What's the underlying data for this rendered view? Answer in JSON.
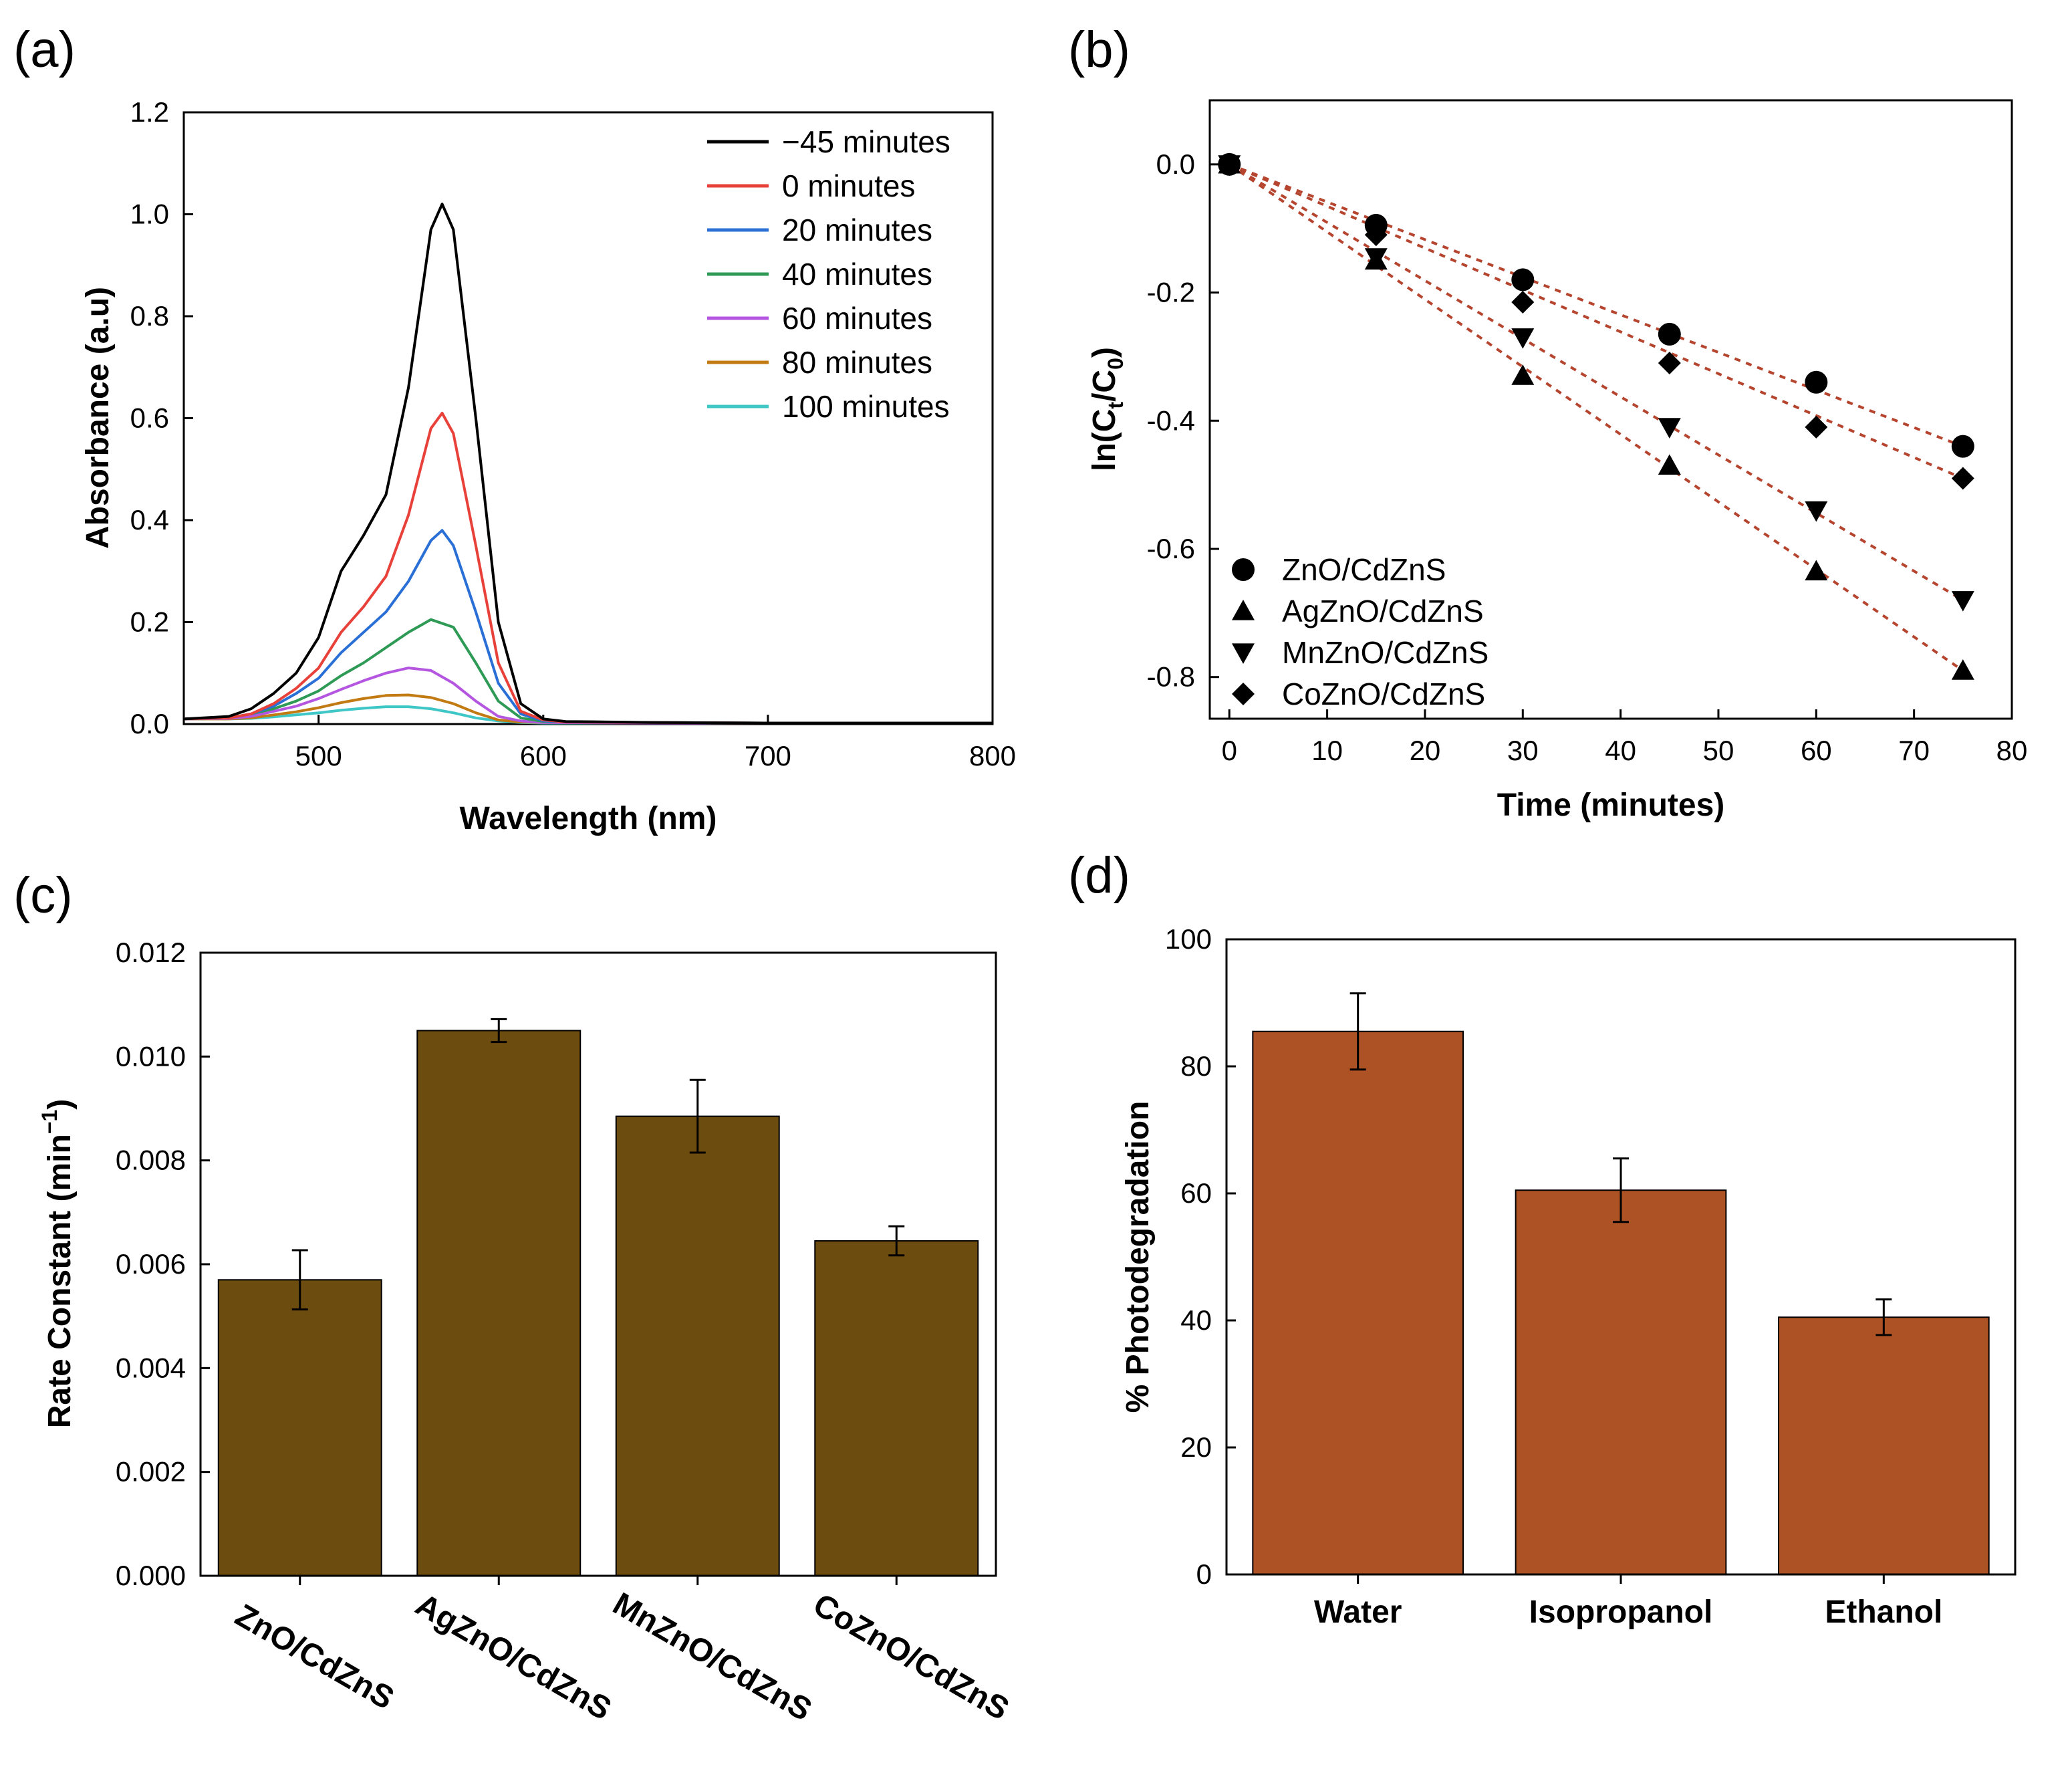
{
  "chart_data": [
    {
      "id": "a",
      "panel_label": "(a)",
      "type": "line",
      "title": "",
      "xlabel": "Wavelength (nm)",
      "ylabel": "Absorbance (a.u)",
      "xlim": [
        440,
        800
      ],
      "ylim": [
        0,
        1.2
      ],
      "xticks": [
        500,
        600,
        700,
        800
      ],
      "yticks": [
        0.0,
        0.2,
        0.4,
        0.6,
        0.8,
        1.0,
        1.2
      ],
      "xtick_labels": [
        "500",
        "600",
        "700",
        "800"
      ],
      "ytick_labels": [
        "0.0",
        "0.2",
        "0.4",
        "0.6",
        "0.8",
        "1.0",
        "1.2"
      ],
      "legend_position": "top-right",
      "series": [
        {
          "name": "−45 minutes",
          "color": "#000000",
          "x": [
            440,
            460,
            470,
            480,
            490,
            500,
            510,
            520,
            530,
            540,
            550,
            555,
            560,
            570,
            580,
            590,
            600,
            610,
            650,
            700,
            800
          ],
          "values": [
            0.01,
            0.015,
            0.03,
            0.06,
            0.1,
            0.17,
            0.3,
            0.37,
            0.45,
            0.66,
            0.97,
            1.02,
            0.97,
            0.6,
            0.2,
            0.04,
            0.01,
            0.005,
            0.003,
            0.002,
            0.002
          ]
        },
        {
          "name": "0 minutes",
          "color": "#e8413a",
          "x": [
            440,
            460,
            470,
            480,
            490,
            500,
            510,
            520,
            530,
            540,
            550,
            555,
            560,
            570,
            580,
            590,
            600,
            610,
            650,
            700,
            800
          ],
          "values": [
            0.01,
            0.012,
            0.02,
            0.04,
            0.07,
            0.11,
            0.18,
            0.23,
            0.29,
            0.41,
            0.58,
            0.61,
            0.57,
            0.35,
            0.12,
            0.025,
            0.008,
            0.004,
            0.003,
            0.002,
            0.002
          ]
        },
        {
          "name": "20 minutes",
          "color": "#2a6fd6",
          "x": [
            440,
            460,
            470,
            480,
            490,
            500,
            510,
            520,
            530,
            540,
            550,
            555,
            560,
            570,
            580,
            590,
            600,
            610,
            650,
            700,
            800
          ],
          "values": [
            0.01,
            0.012,
            0.02,
            0.035,
            0.06,
            0.09,
            0.14,
            0.18,
            0.22,
            0.28,
            0.36,
            0.38,
            0.35,
            0.22,
            0.08,
            0.02,
            0.006,
            0.004,
            0.003,
            0.002,
            0.002
          ]
        },
        {
          "name": "40 minutes",
          "color": "#2e9a55",
          "x": [
            440,
            460,
            470,
            480,
            490,
            500,
            510,
            520,
            530,
            540,
            550,
            560,
            570,
            580,
            590,
            600,
            650,
            700,
            800
          ],
          "values": [
            0.01,
            0.012,
            0.02,
            0.03,
            0.045,
            0.065,
            0.095,
            0.12,
            0.15,
            0.18,
            0.205,
            0.19,
            0.12,
            0.045,
            0.012,
            0.005,
            0.003,
            0.002,
            0.002
          ]
        },
        {
          "name": "60 minutes",
          "color": "#b556e0",
          "x": [
            440,
            460,
            470,
            480,
            490,
            500,
            510,
            520,
            530,
            540,
            550,
            560,
            570,
            580,
            590,
            600,
            650,
            700,
            800
          ],
          "values": [
            0.01,
            0.011,
            0.015,
            0.025,
            0.035,
            0.05,
            0.068,
            0.085,
            0.1,
            0.11,
            0.105,
            0.08,
            0.045,
            0.015,
            0.006,
            0.003,
            0.002,
            0.002,
            0.002
          ]
        },
        {
          "name": "80 minutes",
          "color": "#c27a12",
          "x": [
            440,
            460,
            470,
            480,
            490,
            500,
            510,
            520,
            530,
            540,
            550,
            560,
            570,
            580,
            590,
            600,
            650,
            700,
            800
          ],
          "values": [
            0.01,
            0.01,
            0.012,
            0.018,
            0.024,
            0.032,
            0.042,
            0.05,
            0.056,
            0.057,
            0.052,
            0.04,
            0.022,
            0.008,
            0.004,
            0.003,
            0.002,
            0.002,
            0.002
          ]
        },
        {
          "name": "100 minutes",
          "color": "#3fc7c7",
          "x": [
            440,
            460,
            470,
            480,
            490,
            500,
            510,
            520,
            530,
            540,
            550,
            560,
            570,
            580,
            590,
            600,
            650,
            700,
            800
          ],
          "values": [
            0.01,
            0.01,
            0.011,
            0.014,
            0.018,
            0.022,
            0.027,
            0.031,
            0.034,
            0.034,
            0.03,
            0.022,
            0.012,
            0.006,
            0.003,
            0.002,
            0.002,
            0.002,
            0.002
          ]
        }
      ]
    },
    {
      "id": "b",
      "panel_label": "(b)",
      "type": "scatter",
      "title": "",
      "xlabel": "Time (minutes)",
      "ylabel_parts": [
        "ln(C",
        "t",
        "/C",
        "0",
        ")"
      ],
      "xlim": [
        -2,
        80
      ],
      "ylim": [
        -0.865,
        0.1
      ],
      "xticks": [
        0,
        10,
        20,
        30,
        40,
        50,
        60,
        70,
        80
      ],
      "yticks": [
        0.0,
        -0.2,
        -0.4,
        -0.6,
        -0.8
      ],
      "xtick_labels": [
        "0",
        "10",
        "20",
        "30",
        "40",
        "50",
        "60",
        "70",
        "80"
      ],
      "ytick_labels": [
        "0.0",
        "-0.2",
        "-0.4",
        "-0.6",
        "-0.8"
      ],
      "fit_lines": "dashed",
      "fit_color": "#b5452f",
      "legend_position": "bottom-left",
      "series": [
        {
          "name": "ZnO/CdZnS",
          "marker": "circle",
          "x": [
            0,
            15,
            30,
            45,
            60,
            75
          ],
          "values": [
            0.0,
            -0.095,
            -0.18,
            -0.265,
            -0.34,
            -0.44
          ]
        },
        {
          "name": "AgZnO/CdZnS",
          "marker": "triangle-up",
          "x": [
            0,
            15,
            30,
            45,
            60,
            75
          ],
          "values": [
            0.0,
            -0.15,
            -0.33,
            -0.47,
            -0.635,
            -0.79
          ]
        },
        {
          "name": "MnZnO/CdZnS",
          "marker": "triangle-down",
          "x": [
            0,
            15,
            30,
            45,
            60,
            75
          ],
          "values": [
            0.0,
            -0.145,
            -0.27,
            -0.41,
            -0.54,
            -0.68
          ]
        },
        {
          "name": "CoZnO/CdZnS",
          "marker": "diamond",
          "x": [
            0,
            15,
            30,
            45,
            60,
            75
          ],
          "values": [
            0.0,
            -0.11,
            -0.215,
            -0.31,
            -0.41,
            -0.49
          ]
        }
      ]
    },
    {
      "id": "c",
      "panel_label": "(c)",
      "type": "bar",
      "title": "",
      "xlabel": "",
      "ylabel_parts": [
        "Rate Constant (min",
        "−1",
        ")"
      ],
      "ylim": [
        0,
        0.012
      ],
      "yticks": [
        0.0,
        0.002,
        0.004,
        0.006,
        0.008,
        0.01,
        0.012
      ],
      "ytick_labels": [
        "0.000",
        "0.002",
        "0.004",
        "0.006",
        "0.008",
        "0.010",
        "0.012"
      ],
      "bar_color": "#6d4c10",
      "categories": [
        "ZnO/CdZnS",
        "AgZnO/CdZnS",
        "MnZnO/CdZnS",
        "CoZnO/CdZnS"
      ],
      "values": [
        0.0057,
        0.0105,
        0.00885,
        0.00645
      ],
      "errors": [
        0.00057,
        0.00022,
        0.0007,
        0.00028
      ]
    },
    {
      "id": "d",
      "panel_label": "(d)",
      "type": "bar",
      "title": "",
      "xlabel": "",
      "ylabel": "% Photodegradation",
      "ylim": [
        0,
        100
      ],
      "yticks": [
        0,
        20,
        40,
        60,
        80,
        100
      ],
      "ytick_labels": [
        "0",
        "20",
        "40",
        "60",
        "80",
        "100"
      ],
      "bar_color": "#ad5225",
      "categories": [
        "Water",
        "Isopropanol",
        "Ethanol"
      ],
      "values": [
        85.5,
        60.5,
        40.5
      ],
      "errors": [
        6.0,
        5.0,
        2.8
      ]
    }
  ]
}
